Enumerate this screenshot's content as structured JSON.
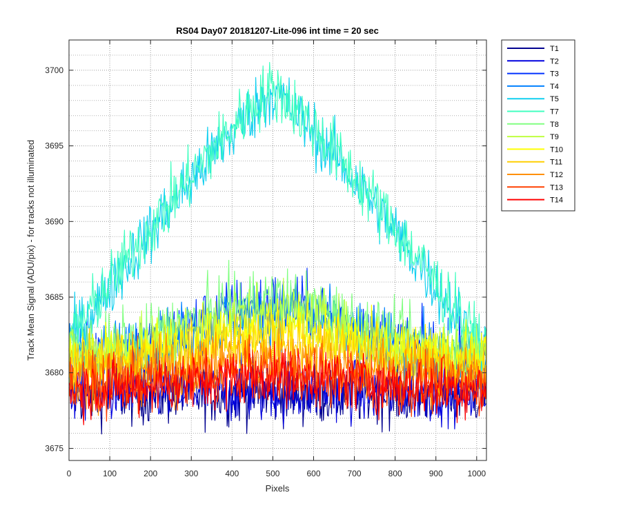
{
  "chart_data": {
    "type": "line",
    "title": "RS04 Day07 20181207-Lite-096 int time = 20 sec",
    "xlabel": "Pixels",
    "ylabel": "Track Mean Signal (ADU/pix) - for tracks not illuminated",
    "xlim": [
      0,
      1024
    ],
    "ylim": [
      3674.2,
      3702.0
    ],
    "xticks": [
      0,
      100,
      200,
      300,
      400,
      500,
      600,
      700,
      800,
      900,
      1000
    ],
    "yticks": [
      3675,
      3680,
      3685,
      3690,
      3695,
      3700
    ],
    "grid": "on",
    "minor_grid_y": "on",
    "legend_position": "outside-right-top",
    "series": [
      {
        "name": "T1",
        "color": "#00008f",
        "profile": "flat",
        "base": 3678.6,
        "peak": 0,
        "noise": 1.7
      },
      {
        "name": "T2",
        "color": "#0000df",
        "profile": "flat",
        "base": 3678.8,
        "peak": 0,
        "noise": 1.7
      },
      {
        "name": "T3",
        "color": "#0030ff",
        "profile": "mound",
        "base": 3681.0,
        "peak": 3.5,
        "noise": 1.8
      },
      {
        "name": "T4",
        "color": "#0080ff",
        "profile": "mound",
        "base": 3681.0,
        "peak": 3.0,
        "noise": 1.8
      },
      {
        "name": "T5",
        "color": "#10cfef",
        "profile": "tent",
        "base": 3681.2,
        "peak": 17.3,
        "noise": 1.7
      },
      {
        "name": "T7",
        "color": "#40ffbf",
        "profile": "tent",
        "base": 3681.4,
        "peak": 17.4,
        "noise": 1.7
      },
      {
        "name": "T8",
        "color": "#80ff80",
        "profile": "mound",
        "base": 3681.4,
        "peak": 3.4,
        "noise": 1.8
      },
      {
        "name": "T9",
        "color": "#bfff40",
        "profile": "mound",
        "base": 3681.2,
        "peak": 2.6,
        "noise": 1.7
      },
      {
        "name": "T10",
        "color": "#ffff00",
        "profile": "mound",
        "base": 3680.9,
        "peak": 2.0,
        "noise": 1.7
      },
      {
        "name": "T11",
        "color": "#ffcf00",
        "profile": "mound",
        "base": 3680.5,
        "peak": 1.5,
        "noise": 1.7
      },
      {
        "name": "T12",
        "color": "#ff8f00",
        "profile": "mound",
        "base": 3679.8,
        "peak": 1.0,
        "noise": 1.7
      },
      {
        "name": "T13",
        "color": "#ff4000",
        "profile": "mound",
        "base": 3679.2,
        "peak": 0.8,
        "noise": 1.6
      },
      {
        "name": "T14",
        "color": "#ff0000",
        "profile": "mound",
        "base": 3678.9,
        "peak": 0.9,
        "noise": 1.6
      }
    ]
  }
}
